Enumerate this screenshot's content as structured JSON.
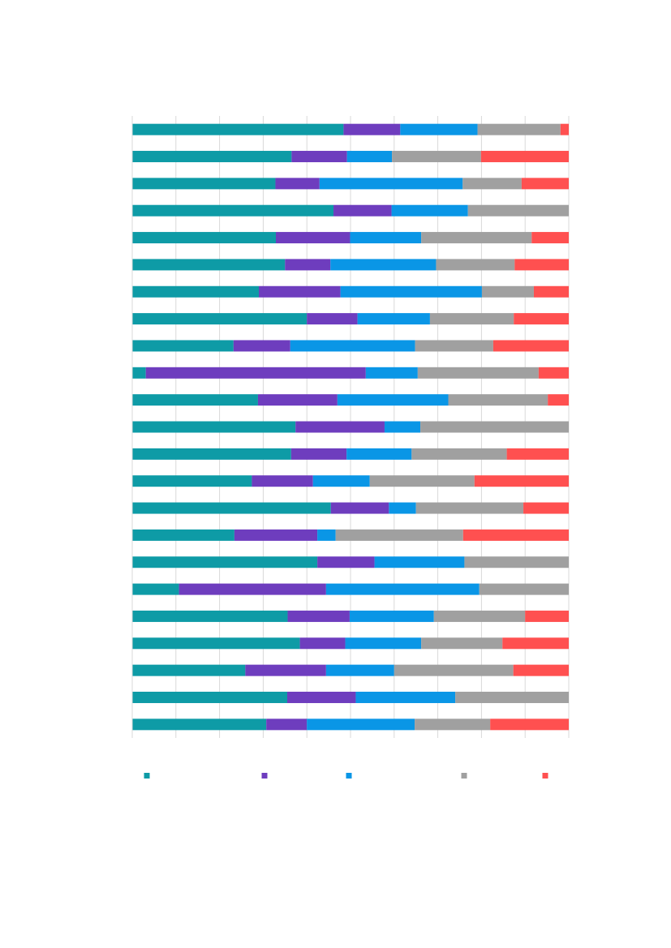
{
  "chart_data": {
    "type": "bar",
    "orientation": "horizontal",
    "stacked": true,
    "percent_stacked": true,
    "title": "",
    "xlabel": "",
    "ylabel": "",
    "xlim": [
      0,
      100
    ],
    "grid": "vertical",
    "legend_position": "bottom",
    "categories": [
      "",
      "",
      "",
      "",
      "",
      "",
      "",
      "",
      "",
      "",
      "",
      "",
      "",
      "",
      "",
      "",
      "",
      "",
      "",
      "",
      "",
      "",
      ""
    ],
    "series": [
      {
        "color": "#0e9ba6",
        "values": [
          48.4,
          36.5,
          32.8,
          46.1,
          32.9,
          35.0,
          29.0,
          40.0,
          23.2,
          3.1,
          28.8,
          37.4,
          36.4,
          27.4,
          45.5,
          23.4,
          42.4,
          10.7,
          35.6,
          38.4,
          25.9,
          35.5,
          30.7
        ]
      },
      {
        "color": "#6e3dbe",
        "values": [
          13.0,
          12.7,
          10.1,
          13.3,
          17.0,
          10.4,
          18.7,
          11.6,
          13.0,
          50.4,
          18.2,
          20.4,
          12.7,
          14.0,
          13.3,
          19.0,
          13.1,
          33.7,
          14.2,
          10.4,
          18.5,
          15.7,
          9.3
        ]
      },
      {
        "color": "#0a96e6",
        "values": [
          17.7,
          10.3,
          32.8,
          17.5,
          16.3,
          24.2,
          32.4,
          16.6,
          28.6,
          11.9,
          25.4,
          8.2,
          14.9,
          13.0,
          6.2,
          4.2,
          20.6,
          35.1,
          19.3,
          17.4,
          15.6,
          22.8,
          24.7
        ]
      },
      {
        "color": "#a0a0a0",
        "values": [
          19.0,
          20.4,
          13.5,
          23.1,
          25.3,
          18.0,
          11.9,
          19.2,
          17.9,
          27.7,
          22.8,
          34.0,
          21.8,
          24.0,
          24.6,
          29.2,
          23.9,
          20.5,
          20.9,
          18.6,
          27.3,
          26.0,
          17.3
        ]
      },
      {
        "color": "#ff5050",
        "values": [
          1.9,
          20.1,
          10.8,
          0.0,
          8.5,
          12.4,
          8.0,
          12.6,
          17.3,
          6.9,
          4.8,
          0.0,
          14.2,
          21.6,
          10.4,
          24.2,
          0.0,
          0.0,
          10.0,
          15.2,
          12.7,
          0.0,
          18.0
        ]
      }
    ]
  }
}
